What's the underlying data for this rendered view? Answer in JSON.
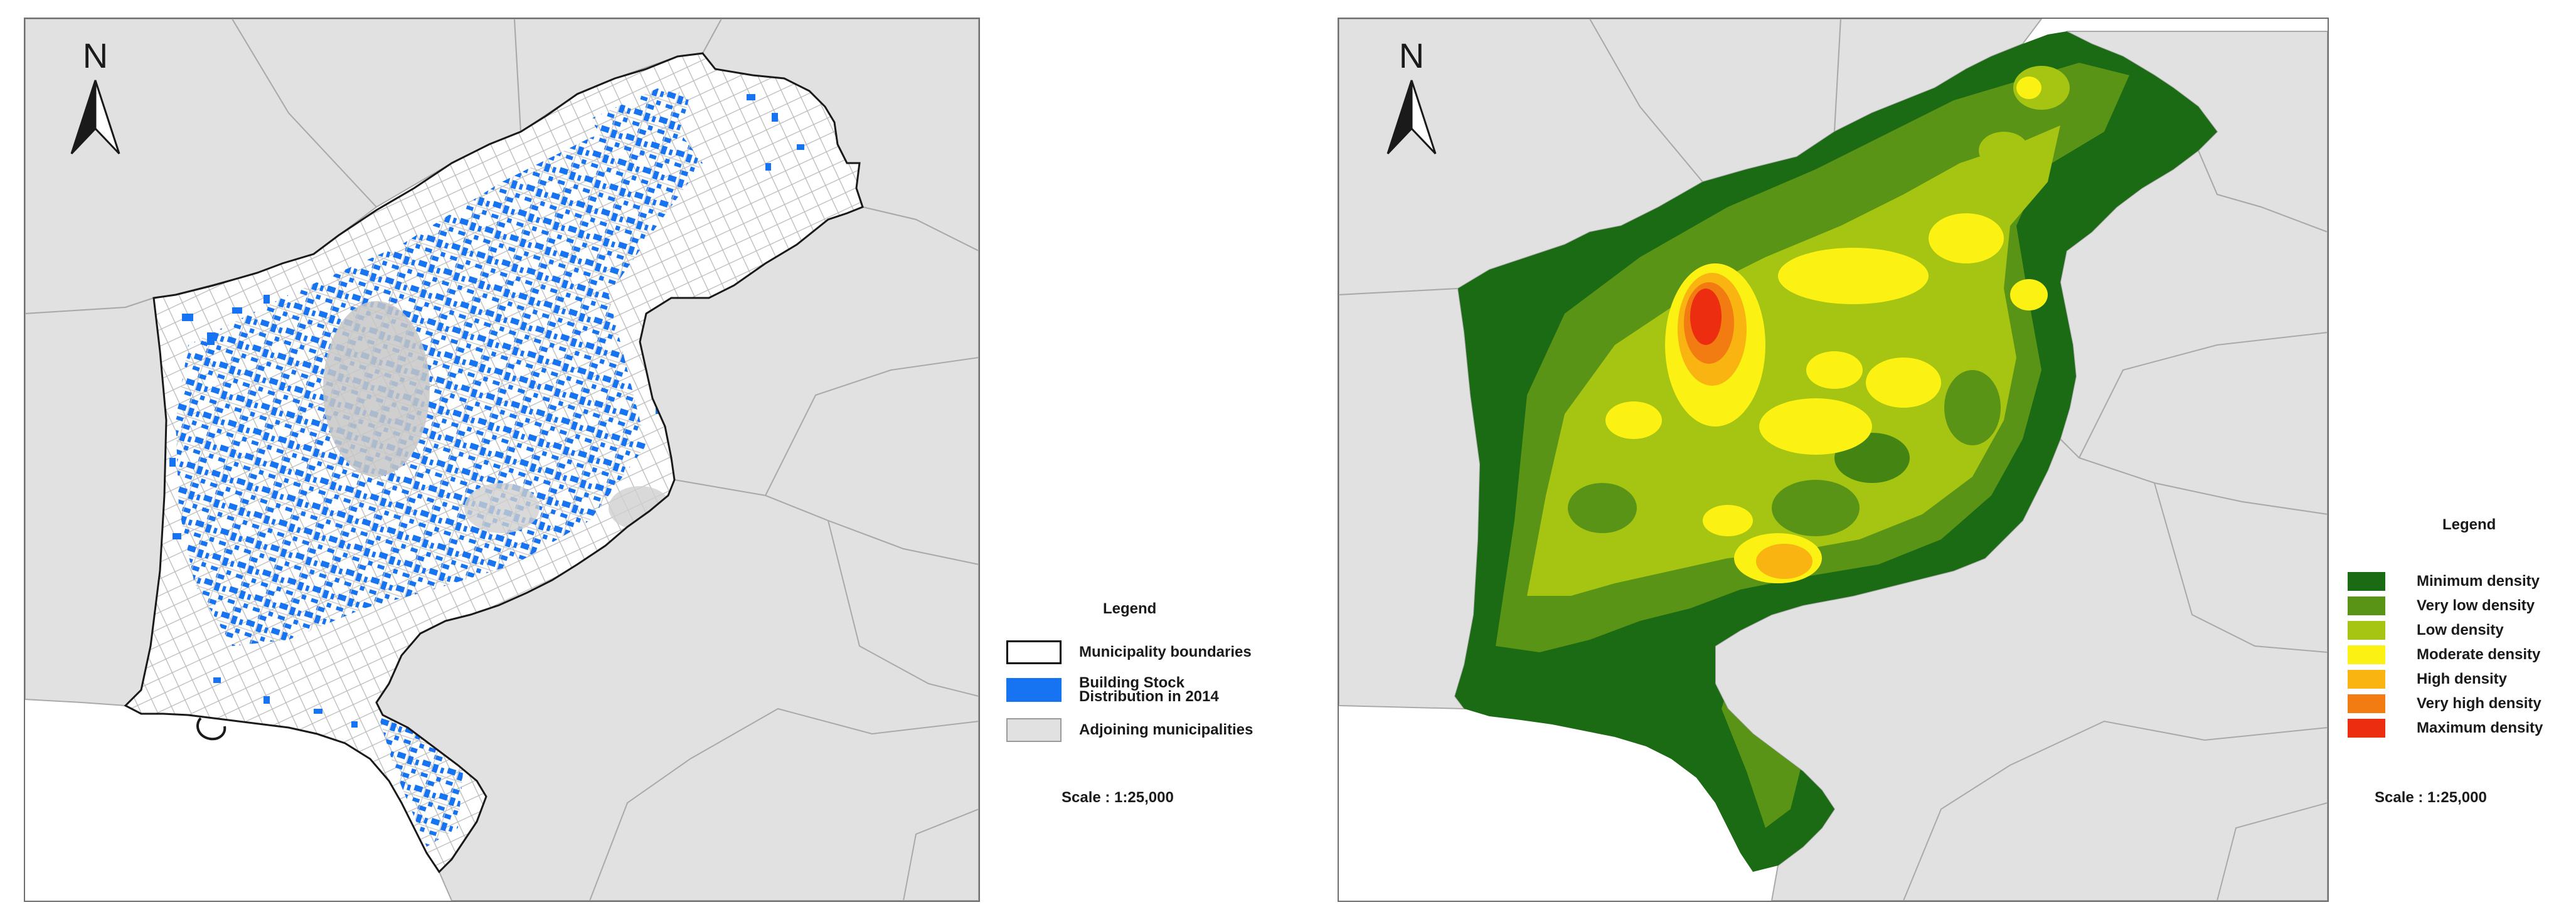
{
  "left_map": {
    "north_label": "N",
    "legend": {
      "title": "Legend",
      "items": [
        {
          "label": "Municipality boundaries",
          "fill": "#ffffff",
          "stroke": "#000000"
        },
        {
          "label": "Building Stock Distribution in 2014",
          "fill": "#1673f2",
          "stroke": "#1673f2"
        },
        {
          "label": "Adjoining municipalities",
          "fill": "#e1e1e1",
          "stroke": "#9a9a9a"
        }
      ]
    },
    "scale": "Scale : 1:25,000"
  },
  "right_map": {
    "north_label": "N",
    "legend": {
      "title": "Legend",
      "items": [
        {
          "label": "Minimum density",
          "color": "#1b6a14"
        },
        {
          "label": "Very low density",
          "color": "#5a9416"
        },
        {
          "label": "Low density",
          "color": "#a6c412"
        },
        {
          "label": "Moderate density",
          "color": "#fbf213"
        },
        {
          "label": "High density",
          "color": "#f9b412"
        },
        {
          "label": "Very high density",
          "color": "#f27c11"
        },
        {
          "label": "Maximum density",
          "color": "#ec2d0f"
        }
      ]
    },
    "scale": "Scale : 1:25,000"
  },
  "colors": {
    "adjoining": "#e1e1e1",
    "adjoining_border": "#a9a9a9",
    "buildings": "#1673f2",
    "streets": "#bdbdbd",
    "municipality_border": "#1a1a1a"
  }
}
